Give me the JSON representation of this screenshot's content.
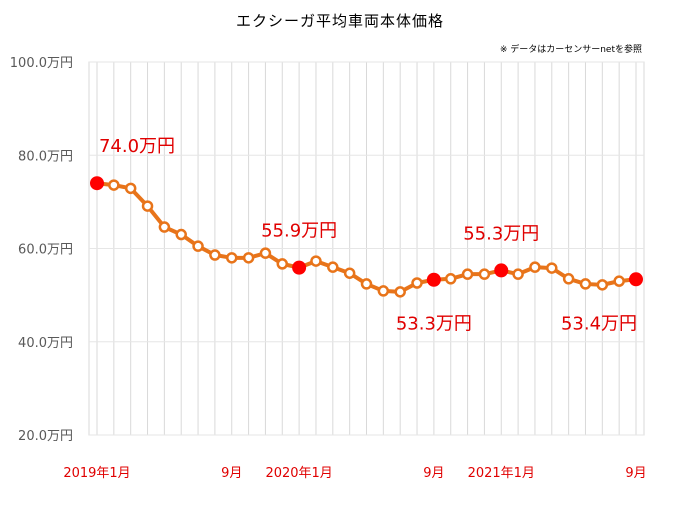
{
  "chart_data": {
    "type": "line",
    "title": "エクシーガ平均車両本体価格",
    "note": "※ データはカーセンサーnetを参照",
    "unit": "万円",
    "ylim": [
      20,
      100
    ],
    "yticks": [
      "100.0万円",
      "80.0万円",
      "60.0万円",
      "40.0万円",
      "20.0万円"
    ],
    "ytick_values": [
      100,
      80,
      60,
      40,
      20
    ],
    "x_labels": [
      {
        "index": 0,
        "label": "2019年1月"
      },
      {
        "index": 8,
        "label": "9月"
      },
      {
        "index": 12,
        "label": "2020年1月"
      },
      {
        "index": 20,
        "label": "9月"
      },
      {
        "index": 24,
        "label": "2021年1月"
      },
      {
        "index": 32,
        "label": "9月"
      }
    ],
    "values": [
      74.0,
      73.6,
      72.9,
      69.1,
      64.6,
      63.0,
      60.5,
      58.6,
      58.0,
      58.0,
      59.0,
      56.7,
      55.9,
      57.3,
      56.0,
      54.7,
      52.4,
      50.9,
      50.7,
      52.6,
      53.3,
      53.5,
      54.5,
      54.5,
      55.3,
      54.5,
      56.0,
      55.8,
      53.5,
      52.4,
      52.2,
      53.0,
      53.4
    ],
    "annotations": [
      {
        "index": 0,
        "label": "74.0万円",
        "pos": "above"
      },
      {
        "index": 12,
        "label": "55.9万円",
        "pos": "above"
      },
      {
        "index": 20,
        "label": "53.3万円",
        "pos": "below"
      },
      {
        "index": 24,
        "label": "55.3万円",
        "pos": "above"
      },
      {
        "index": 32,
        "label": "53.4万円",
        "pos": "below"
      }
    ],
    "colors": {
      "line": "#E8741A",
      "highlight": "#FF0000",
      "label": "#E00000",
      "grid": "#D9D9D9"
    }
  }
}
